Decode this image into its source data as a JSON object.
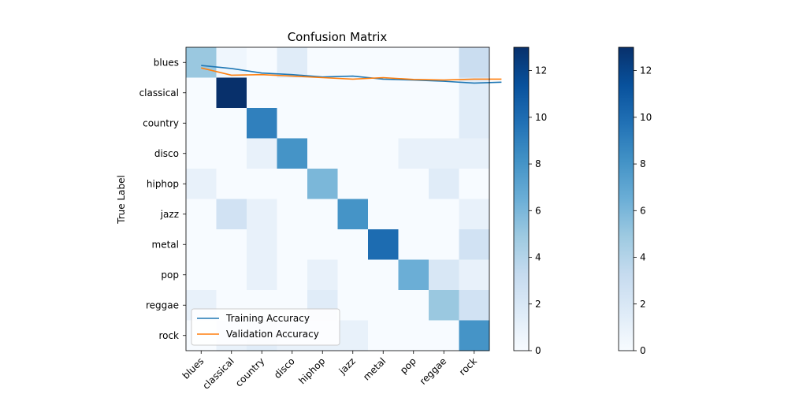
{
  "chart_data": {
    "type": "heatmap",
    "title": "Confusion Matrix",
    "xlabel": "",
    "ylabel": "True Label",
    "x_categories": [
      "blues",
      "classical",
      "country",
      "disco",
      "hiphop",
      "jazz",
      "metal",
      "pop",
      "reggae",
      "rock"
    ],
    "y_categories": [
      "blues",
      "classical",
      "country",
      "disco",
      "hiphop",
      "jazz",
      "metal",
      "pop",
      "reggae",
      "rock"
    ],
    "values": [
      [
        5,
        0.5,
        0,
        1.5,
        0,
        0,
        0,
        0,
        0,
        3
      ],
      [
        0,
        13,
        0,
        0,
        0,
        0,
        0,
        0,
        0,
        1.5
      ],
      [
        0,
        0,
        9,
        0,
        0,
        0,
        0,
        0,
        0,
        1.5
      ],
      [
        0,
        0,
        1,
        8,
        0,
        0,
        0,
        1,
        1,
        1
      ],
      [
        1,
        0,
        0,
        0,
        6,
        0,
        0,
        0,
        1.5,
        0
      ],
      [
        0,
        2.5,
        1,
        0,
        0,
        8,
        0,
        0,
        0,
        1
      ],
      [
        0,
        0,
        1,
        0,
        0,
        0,
        10,
        0,
        0,
        2.5
      ],
      [
        0,
        0,
        1,
        0,
        1,
        0,
        0,
        6.5,
        2,
        1
      ],
      [
        1,
        0,
        0,
        0,
        1.5,
        0,
        0,
        0,
        5,
        2.5
      ],
      [
        0,
        1,
        1.5,
        1,
        1,
        1,
        0,
        0,
        0,
        8
      ]
    ],
    "vmin": 0,
    "vmax": 13,
    "colormap": "Blues",
    "colorbars": [
      {
        "ticks": [
          0,
          2,
          4,
          6,
          8,
          10,
          12
        ]
      },
      {
        "ticks": [
          0,
          2,
          4,
          6,
          8,
          10,
          12
        ]
      }
    ],
    "line_overlay": {
      "x": [
        0,
        1,
        2,
        3,
        4,
        5,
        6,
        7,
        8,
        9,
        9.9
      ],
      "ylim_note": "lines drawn in heatmap coordinate space",
      "series": [
        {
          "name": "Training Accuracy",
          "color": "#1f77b4",
          "y": [
            0.1,
            0.2,
            0.35,
            0.4,
            0.48,
            0.45,
            0.55,
            0.58,
            0.62,
            0.68,
            0.65
          ]
        },
        {
          "name": "Validation Accuracy",
          "color": "#ff7f0e",
          "y": [
            0.18,
            0.42,
            0.4,
            0.45,
            0.5,
            0.55,
            0.5,
            0.56,
            0.58,
            0.55,
            0.55
          ]
        }
      ]
    },
    "legend": {
      "placement": "lower-left",
      "entries": [
        "Training Accuracy",
        "Validation Accuracy"
      ]
    },
    "grid": false
  }
}
